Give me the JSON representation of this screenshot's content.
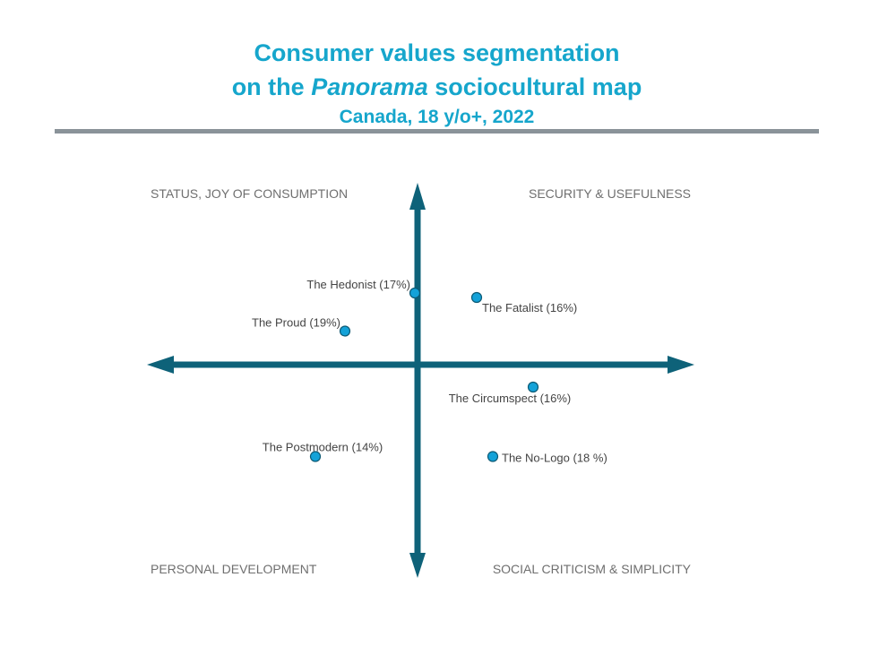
{
  "header": {
    "title_line1": "Consumer values segmentation",
    "title_line2_prefix": "on the ",
    "title_line2_italic": "Panorama",
    "title_line2_suffix": " sociocultural map",
    "subtitle": "Canada, 18 y/o+, 2022"
  },
  "colors": {
    "title": "#16a6cc",
    "divider": "#8a9399",
    "axis": "#0e6279",
    "point_fill": "#14a2d8",
    "point_stroke": "#0c5a75",
    "quadrant_text": "#6f6f6f",
    "label_text": "#444444"
  },
  "chart_data": {
    "type": "scatter",
    "title": "Consumer values segmentation on the Panorama sociocultural map",
    "subtitle": "Canada, 18 y/o+, 2022",
    "xlim": [
      -1,
      1
    ],
    "ylim": [
      -1,
      1
    ],
    "grid": false,
    "quadrants": {
      "top_left": "STATUS, JOY OF CONSUMPTION",
      "top_right": "SECURITY & USEFULNESS",
      "bottom_left": "PERSONAL DEVELOPMENT",
      "bottom_right": "SOCIAL CRITICISM & SIMPLICITY"
    },
    "points": [
      {
        "name": "The Hedonist",
        "share_percent": 17,
        "label": "The Hedonist (17%)",
        "x": -0.01,
        "y": 0.32,
        "label_side": "left-above"
      },
      {
        "name": "The Fatalist",
        "share_percent": 16,
        "label": "The Fatalist (16%)",
        "x": 0.22,
        "y": 0.3,
        "label_side": "right-below"
      },
      {
        "name": "The Proud",
        "share_percent": 19,
        "label": "The Proud (19%)",
        "x": -0.27,
        "y": 0.15,
        "label_side": "left-above"
      },
      {
        "name": "The Circumspect",
        "share_percent": 16,
        "label": "The Circumspect (16%)",
        "x": 0.43,
        "y": -0.1,
        "label_side": "center-below"
      },
      {
        "name": "The Postmodern",
        "share_percent": 14,
        "label": "The Postmodern (14%)",
        "x": -0.38,
        "y": -0.41,
        "label_side": "center-above"
      },
      {
        "name": "The No-Logo",
        "share_percent": 18,
        "label": "The No-Logo (18 %)",
        "x": 0.28,
        "y": -0.41,
        "label_side": "right"
      }
    ]
  }
}
